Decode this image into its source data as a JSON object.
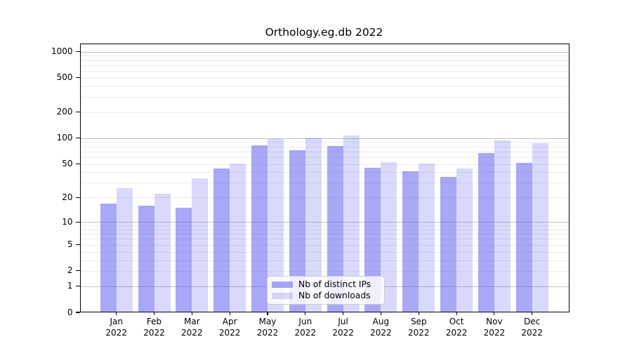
{
  "chart_data": {
    "type": "bar",
    "title": "Orthology.eg.db 2022",
    "categories": [
      "Jan 2022",
      "Feb 2022",
      "Mar 2022",
      "Apr 2022",
      "May 2022",
      "Jun 2022",
      "Jul 2022",
      "Aug 2022",
      "Sep 2022",
      "Oct 2022",
      "Nov 2022",
      "Dec 2022"
    ],
    "series": [
      {
        "name": "Nb of distinct IPs",
        "values": [
          17,
          16,
          15,
          44,
          83,
          72,
          81,
          45,
          41,
          35,
          67,
          52
        ],
        "color": "rgba(81,81,237,0.5)",
        "color_on_white_hex": "#a8a8f6"
      },
      {
        "name": "Nb of downloads",
        "values": [
          26,
          22,
          34,
          51,
          97,
          102,
          108,
          53,
          51,
          44,
          94,
          87
        ],
        "color": "rgba(81,81,237,0.22)",
        "color_on_white_hex": "#d8d8fa"
      }
    ],
    "xlabel": "",
    "ylabel": "",
    "yscale": "log1p",
    "ylim": [
      0,
      1250
    ],
    "yticks": [
      0,
      1,
      2,
      5,
      10,
      20,
      50,
      100,
      200,
      500,
      1000
    ],
    "grid": {
      "major": [
        1,
        10,
        100,
        1000
      ],
      "minor": [
        2,
        3,
        4,
        5,
        6,
        7,
        8,
        9,
        20,
        30,
        40,
        50,
        60,
        70,
        80,
        90,
        200,
        300,
        400,
        500,
        600,
        700,
        800,
        900
      ],
      "major_color": "#c3c3c3",
      "minor_color": "#ebebeb"
    },
    "legend_position": "inside-lower-center",
    "axis_color": "#000000",
    "background_color": "#ffffff"
  }
}
